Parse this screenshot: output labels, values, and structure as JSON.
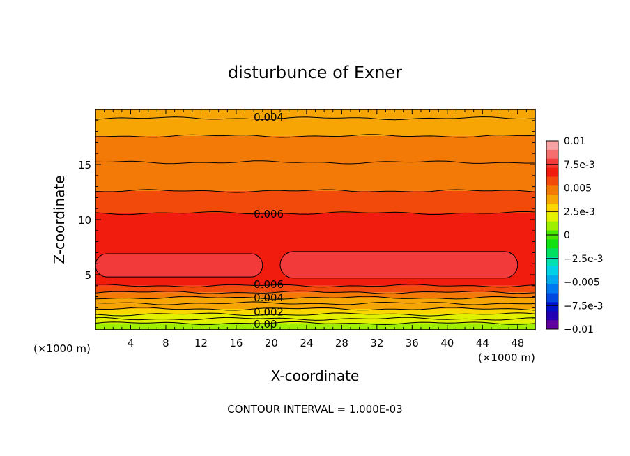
{
  "chart_data": {
    "type": "heatmap",
    "title": "disturbunce of Exner",
    "xlabel": "X-coordinate",
    "ylabel": "Z-coordinate",
    "x_unit": "(×1000 m)",
    "y_unit": "(×1000 m)",
    "xlim": [
      0,
      50
    ],
    "ylim": [
      0,
      20
    ],
    "x_ticks": [
      4,
      8,
      12,
      16,
      20,
      24,
      28,
      32,
      36,
      40,
      44,
      48
    ],
    "y_ticks": [
      5,
      10,
      15
    ],
    "contour_interval_text": "CONTOUR INTERVAL = 1.000E-03",
    "contour_labels": [
      {
        "text": "0.004",
        "x": 18,
        "z": 19.3
      },
      {
        "text": "0.006",
        "x": 18,
        "z": 10.5
      },
      {
        "text": "0.006",
        "x": 18,
        "z": 4.1
      },
      {
        "text": "0.004",
        "x": 18,
        "z": 2.9
      },
      {
        "text": "0.002",
        "x": 18,
        "z": 1.6
      },
      {
        "text": "0.00",
        "x": 18,
        "z": 0.5
      }
    ],
    "levels": [
      {
        "z0": 0.0,
        "z1": 0.6,
        "value": 0.0005
      },
      {
        "z0": 0.6,
        "z1": 1.0,
        "value": 0.0015
      },
      {
        "z0": 1.0,
        "z1": 1.4,
        "value": 0.002
      },
      {
        "z0": 1.4,
        "z1": 1.9,
        "value": 0.0025
      },
      {
        "z0": 1.9,
        "z1": 2.4,
        "value": 0.0035
      },
      {
        "z0": 2.4,
        "z1": 2.9,
        "value": 0.004
      },
      {
        "z0": 2.9,
        "z1": 3.4,
        "value": 0.0045
      },
      {
        "z0": 3.4,
        "z1": 4.0,
        "value": 0.0055
      },
      {
        "z0": 4.0,
        "z1": 10.6,
        "value": 0.0065
      },
      {
        "z0": 10.6,
        "z1": 12.6,
        "value": 0.0058
      },
      {
        "z0": 12.6,
        "z1": 15.2,
        "value": 0.0052
      },
      {
        "z0": 15.2,
        "z1": 17.6,
        "value": 0.0048
      },
      {
        "z0": 17.6,
        "z1": 19.2,
        "value": 0.0042
      },
      {
        "z0": 19.2,
        "z1": 20.0,
        "value": 0.0035
      }
    ],
    "max_regions": [
      {
        "x0": 0,
        "x1": 19,
        "z0": 4.8,
        "z1": 6.9,
        "value": 0.0075
      },
      {
        "x0": 21,
        "x1": 48,
        "z0": 4.7,
        "z1": 7.1,
        "value": 0.0075
      }
    ],
    "colorbar": {
      "min": -0.01,
      "max": 0.01,
      "tick_labels": [
        "0.01",
        "7.5e-3",
        "0.005",
        "2.5e-3",
        "0",
        "-2.5e-3",
        "-0.005",
        "-7.5e-3",
        "-0.01"
      ],
      "colors": [
        "#f7a3a3",
        "#f56f6f",
        "#f23a3a",
        "#f21c0e",
        "#f24a0a",
        "#f47a07",
        "#f7a505",
        "#fbd600",
        "#e3f000",
        "#9ef000",
        "#45e800",
        "#11e011",
        "#00e060",
        "#00e0b0",
        "#00d0e8",
        "#00a8f0",
        "#0078f0",
        "#0048e0",
        "#0010c8",
        "#2000b0",
        "#6000a0"
      ]
    }
  }
}
